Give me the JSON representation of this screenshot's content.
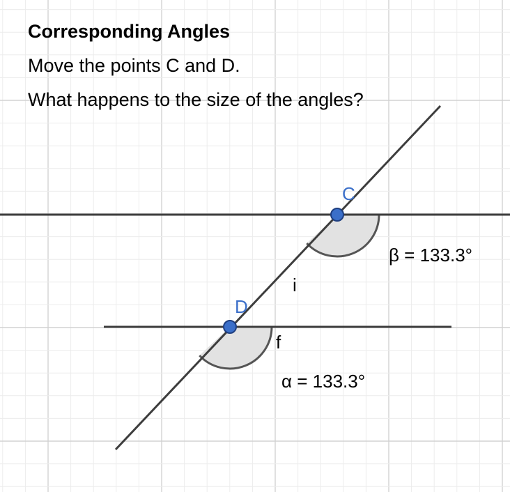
{
  "prompt": {
    "title": "Corresponding Angles",
    "line1": "Move the points C and D.",
    "line2": "What happens to the size of the angles?"
  },
  "points": {
    "C": "C",
    "D": "D"
  },
  "line_labels": {
    "transversal": "i",
    "lower_line": "f"
  },
  "angles": {
    "beta": "β = 133.3°",
    "alpha": "α = 133.3°"
  },
  "colors": {
    "point_fill": "#3b6fc9",
    "point_label": "#3b6fc9",
    "line": "#3d3d3d",
    "grid_major": "#d2d2d2",
    "grid_minor": "#ececec",
    "angle_fill": "#e2e2e2"
  }
}
